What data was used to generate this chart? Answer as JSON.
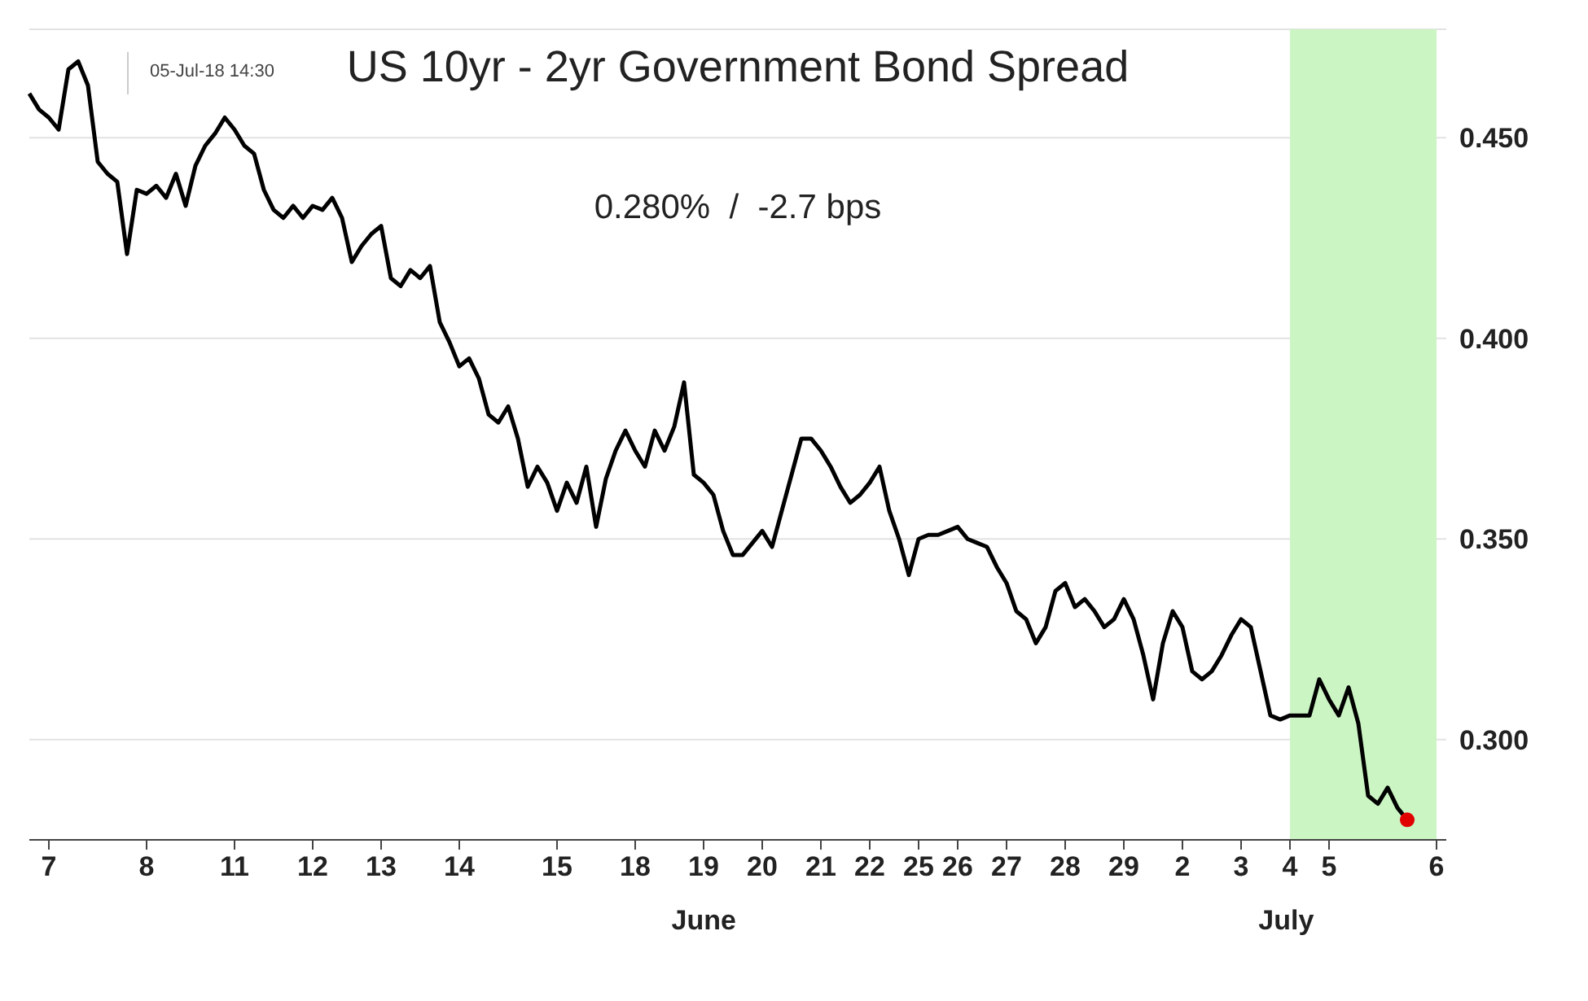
{
  "chart_data": {
    "type": "line",
    "title": "US 10yr - 2yr Government Bond Spread",
    "subtitle": "0.280%  /  -2.7 bps",
    "annotations": [
      "05-Jul-18 14:30",
      "June",
      "July"
    ],
    "categories": [
      null,
      null,
      "7",
      null,
      null,
      null,
      null,
      null,
      null,
      null,
      null,
      null,
      "8",
      null,
      null,
      null,
      null,
      null,
      null,
      null,
      null,
      "11",
      null,
      null,
      null,
      null,
      null,
      null,
      null,
      "12",
      null,
      null,
      null,
      null,
      null,
      null,
      "13",
      null,
      null,
      null,
      null,
      null,
      null,
      null,
      "14",
      null,
      null,
      null,
      null,
      null,
      null,
      null,
      null,
      null,
      "15",
      null,
      null,
      null,
      null,
      null,
      null,
      null,
      "18",
      null,
      null,
      null,
      null,
      null,
      null,
      "19",
      null,
      null,
      null,
      null,
      null,
      "20",
      null,
      null,
      null,
      null,
      null,
      "21",
      null,
      null,
      null,
      null,
      "22",
      null,
      null,
      null,
      null,
      "25",
      null,
      null,
      null,
      "26",
      null,
      null,
      null,
      null,
      "27",
      null,
      null,
      null,
      null,
      null,
      "28",
      null,
      null,
      null,
      null,
      null,
      "29",
      null,
      null,
      null,
      null,
      null,
      "2",
      null,
      null,
      null,
      null,
      null,
      "3",
      null,
      null,
      null,
      null,
      "4",
      null,
      null,
      null,
      "5",
      null,
      null,
      null,
      null,
      null,
      null,
      null,
      null,
      null,
      null,
      "6",
      null
    ],
    "ylim": [
      0.275,
      0.477
    ],
    "yticks": [
      {
        "value": 0.3,
        "label": "0.300"
      },
      {
        "value": 0.35,
        "label": "0.350"
      },
      {
        "value": 0.4,
        "label": "0.400"
      },
      {
        "value": 0.45,
        "label": "0.450"
      }
    ],
    "grid": "y",
    "legend": false,
    "marker": "none",
    "line_style": "solid",
    "bands": [
      {
        "axis": "x",
        "from": "4",
        "to": "6",
        "color": "#ccf5c4"
      }
    ],
    "series": [
      {
        "color": "#000000",
        "values": [
          0.461,
          0.457,
          0.455,
          0.452,
          0.467,
          0.469,
          0.463,
          0.444,
          0.441,
          0.439,
          0.421,
          0.437,
          0.436,
          0.438,
          0.435,
          0.441,
          0.433,
          0.443,
          0.448,
          0.451,
          0.455,
          0.452,
          0.448,
          0.446,
          0.437,
          0.432,
          0.43,
          0.433,
          0.43,
          0.433,
          0.432,
          0.435,
          0.43,
          0.419,
          0.423,
          0.426,
          0.428,
          0.415,
          0.413,
          0.417,
          0.415,
          0.418,
          0.404,
          0.399,
          0.393,
          0.395,
          0.39,
          0.381,
          0.379,
          0.383,
          0.375,
          0.363,
          0.368,
          0.364,
          0.357,
          0.364,
          0.359,
          0.368,
          0.353,
          0.365,
          0.372,
          0.377,
          0.372,
          0.368,
          0.377,
          0.372,
          0.378,
          0.389,
          0.366,
          0.364,
          0.361,
          0.352,
          0.346,
          0.346,
          0.349,
          0.352,
          0.348,
          0.357,
          0.366,
          0.375,
          0.375,
          0.372,
          0.368,
          0.363,
          0.359,
          0.361,
          0.364,
          0.368,
          0.357,
          0.35,
          0.341,
          0.35,
          0.351,
          0.351,
          0.352,
          0.353,
          0.35,
          0.349,
          0.348,
          0.343,
          0.339,
          0.332,
          0.33,
          0.324,
          0.328,
          0.337,
          0.339,
          0.333,
          0.335,
          0.332,
          0.328,
          0.33,
          0.335,
          0.33,
          0.321,
          0.31,
          0.324,
          0.332,
          0.328,
          0.317,
          0.315,
          0.317,
          0.321,
          0.326,
          0.33,
          0.328,
          0.317,
          0.306,
          0.305,
          0.306,
          0.306,
          0.306,
          0.315,
          0.31,
          0.306,
          0.313,
          0.304,
          0.286,
          0.284,
          0.288,
          0.283,
          0.28,
          null,
          null,
          null,
          null
        ]
      },
      {
        "type": "scatter",
        "color": "#e00000",
        "marker": "circle",
        "values": [
          null,
          null,
          null,
          null,
          null,
          null,
          null,
          null,
          null,
          null,
          null,
          null,
          null,
          null,
          null,
          null,
          null,
          null,
          null,
          null,
          null,
          null,
          null,
          null,
          null,
          null,
          null,
          null,
          null,
          null,
          null,
          null,
          null,
          null,
          null,
          null,
          null,
          null,
          null,
          null,
          null,
          null,
          null,
          null,
          null,
          null,
          null,
          null,
          null,
          null,
          null,
          null,
          null,
          null,
          null,
          null,
          null,
          null,
          null,
          null,
          null,
          null,
          null,
          null,
          null,
          null,
          null,
          null,
          null,
          null,
          null,
          null,
          null,
          null,
          null,
          null,
          null,
          null,
          null,
          null,
          null,
          null,
          null,
          null,
          null,
          null,
          null,
          null,
          null,
          null,
          null,
          null,
          null,
          null,
          null,
          null,
          null,
          null,
          null,
          null,
          null,
          null,
          null,
          null,
          null,
          null,
          null,
          null,
          null,
          null,
          null,
          null,
          null,
          null,
          null,
          null,
          null,
          null,
          null,
          null,
          null,
          null,
          null,
          null,
          null,
          null,
          null,
          null,
          null,
          null,
          null,
          null,
          null,
          null,
          null,
          null,
          null,
          null,
          null,
          null,
          null,
          0.28,
          null,
          null,
          null,
          null
        ]
      }
    ]
  }
}
